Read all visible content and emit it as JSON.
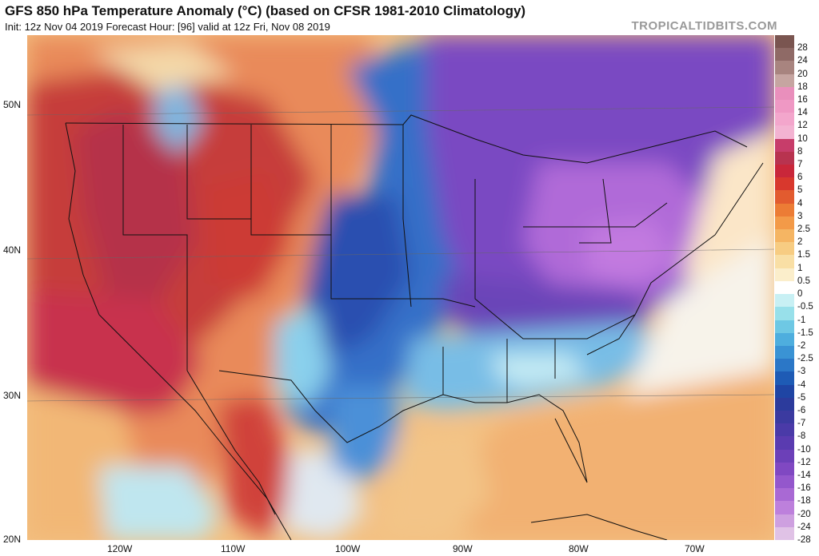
{
  "title": "GFS 850 hPa Temperature Anomaly (°C) (based on CFSR 1981-2010 Climatology)",
  "subtitle": "Init: 12z Nov 04 2019   Forecast Hour: [96]   valid at 12z Fri, Nov 08 2019",
  "watermark": "TROPICALTIDBITS.COM",
  "map": {
    "lat_labels": [
      "50N",
      "40N",
      "30N",
      "20N"
    ],
    "lon_labels": [
      "120W",
      "110W",
      "100W",
      "90W",
      "80W",
      "70W"
    ]
  },
  "colorbar": {
    "labels": [
      "28",
      "24",
      "20",
      "18",
      "16",
      "14",
      "12",
      "10",
      "8",
      "7",
      "6",
      "5",
      "4",
      "3",
      "2.5",
      "2",
      "1.5",
      "1",
      "0.5",
      "0",
      "-0.5",
      "-1",
      "-1.5",
      "-2",
      "-2.5",
      "-3",
      "-4",
      "-5",
      "-6",
      "-7",
      "-8",
      "-10",
      "-12",
      "-14",
      "-16",
      "-18",
      "-20",
      "-24",
      "-28"
    ],
    "colors": [
      "#7a5550",
      "#8f6a66",
      "#a8847f",
      "#c6a5a1",
      "#e98fbc",
      "#ef98c4",
      "#f3a6cc",
      "#f3b3d2",
      "#c73d6a",
      "#b8334f",
      "#c9273a",
      "#d8382d",
      "#e25b2f",
      "#ec7c35",
      "#f39a48",
      "#f5b563",
      "#f7cc82",
      "#f9dfa5",
      "#fbeecb",
      "#ffffff",
      "#c8f0f4",
      "#98e0ea",
      "#6ec8e4",
      "#4eaede",
      "#3a93d4",
      "#2b77c7",
      "#1e5bb5",
      "#1f45a4",
      "#2c3b9c",
      "#3b3aa0",
      "#4a3aa8",
      "#5a3bb0",
      "#6c40b8",
      "#8048c2",
      "#9457cc",
      "#a969d4",
      "#bd80dc",
      "#cea0e0",
      "#e0c2e6"
    ]
  }
}
